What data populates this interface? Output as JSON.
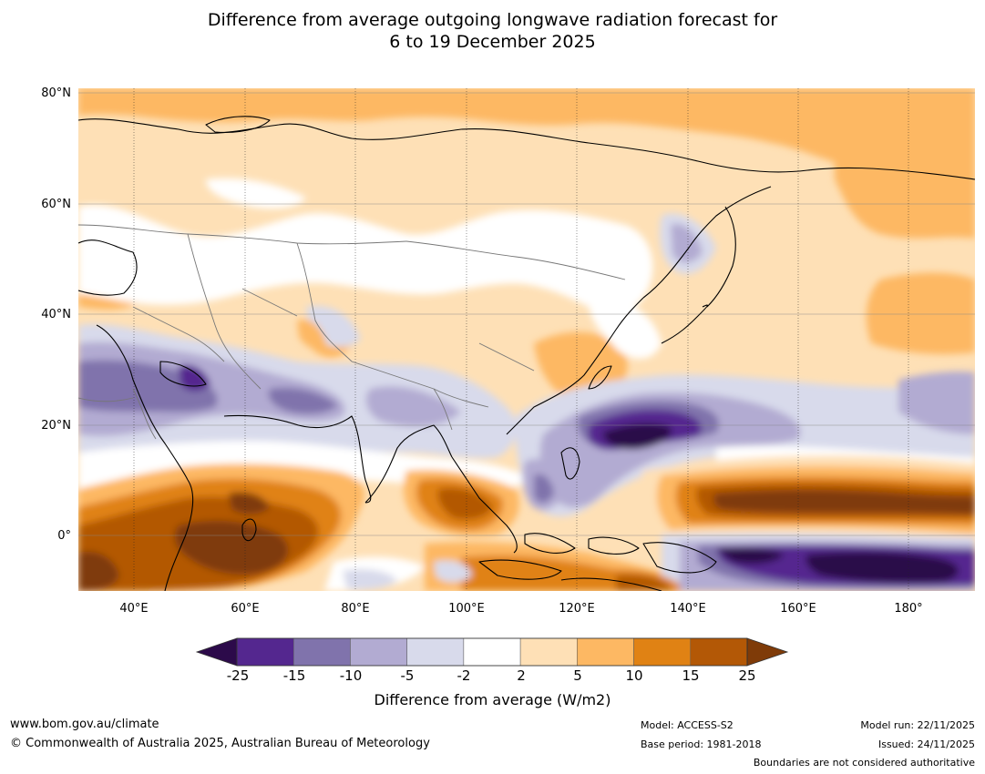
{
  "title": {
    "line1": "Difference from average outgoing longwave radiation forecast for",
    "line2": "6 to 19 December 2025"
  },
  "lat_labels": [
    "80°N",
    "60°N",
    "40°N",
    "20°N",
    "0°"
  ],
  "lon_labels": [
    "40°E",
    "60°E",
    "80°E",
    "100°E",
    "120°E",
    "140°E",
    "160°E",
    "180°"
  ],
  "colorbar": {
    "ticks": [
      "-25",
      "-15",
      "-10",
      "-5",
      "-2",
      "2",
      "5",
      "10",
      "15",
      "25"
    ],
    "colors": [
      "#2c0a4a",
      "#54278f",
      "#8073ac",
      "#b2abd2",
      "#d8daeb",
      "#ffffff",
      "#fee0b6",
      "#fdb863",
      "#e08214",
      "#b35806",
      "#7f3b08"
    ],
    "label": "Difference from average (W/m2)"
  },
  "footer": {
    "website": "www.bom.gov.au/climate",
    "copyright": "© Commonwealth of Australia 2025, Australian Bureau of Meteorology",
    "model": "Model: ACCESS-S2",
    "base_period": "Base period: 1981-2018",
    "model_run": "Model run: 22/11/2025",
    "issued": "Issued: 24/11/2025",
    "disclaimer": "Boundaries are not considered authoritative"
  }
}
